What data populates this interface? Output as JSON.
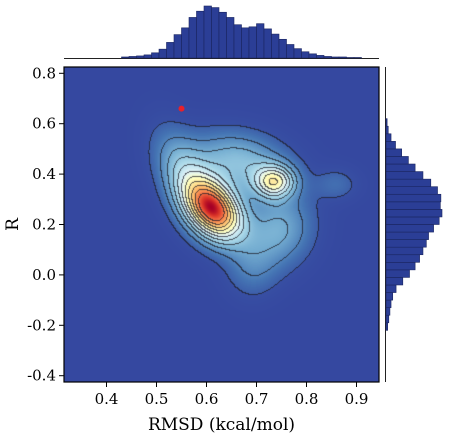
{
  "chart_data": {
    "type": "heatmap",
    "subtype": "joint-kde-with-marginal-histograms",
    "xlabel": "RMSD (kcal/mol)",
    "ylabel": "R",
    "xlim": [
      0.315,
      0.945
    ],
    "ylim": [
      -0.425,
      0.825
    ],
    "x_ticks": [
      0.4,
      0.5,
      0.6,
      0.7,
      0.8,
      0.9
    ],
    "x_tick_labels": [
      "0.4",
      "0.5",
      "0.6",
      "0.7",
      "0.8",
      "0.9"
    ],
    "y_ticks": [
      -0.4,
      -0.2,
      0.0,
      0.2,
      0.4,
      0.6,
      0.8
    ],
    "y_tick_labels": [
      "-0.4",
      "-0.2",
      "0.0",
      "0.2",
      "0.4",
      "0.6",
      "0.8"
    ],
    "colormap": "RdYlBu_r",
    "grid": false,
    "background_color": "#3548a0",
    "density_components": [
      {
        "x": 0.615,
        "y": 0.26,
        "sx": 0.04,
        "sy": 0.085,
        "rho": -0.35,
        "w": 1.0
      },
      {
        "x": 0.735,
        "y": 0.37,
        "sx": 0.028,
        "sy": 0.045,
        "rho": 0.0,
        "w": 0.55
      },
      {
        "x": 0.665,
        "y": 0.45,
        "sx": 0.065,
        "sy": 0.08,
        "rho": -0.2,
        "w": 0.3
      },
      {
        "x": 0.745,
        "y": 0.18,
        "sx": 0.045,
        "sy": 0.1,
        "rho": 0.1,
        "w": 0.25
      },
      {
        "x": 0.56,
        "y": 0.38,
        "sx": 0.04,
        "sy": 0.12,
        "rho": -0.5,
        "w": 0.3
      },
      {
        "x": 0.86,
        "y": 0.36,
        "sx": 0.03,
        "sy": 0.045,
        "rho": 0.0,
        "w": 0.09
      },
      {
        "x": 0.69,
        "y": 0.03,
        "sx": 0.035,
        "sy": 0.08,
        "rho": 0.0,
        "w": 0.12
      }
    ],
    "contour_levels": [
      0.05,
      0.13,
      0.21,
      0.29,
      0.37,
      0.45,
      0.53,
      0.61,
      0.69,
      0.77,
      0.85
    ],
    "highlight_point": {
      "x": 0.55,
      "y": 0.66,
      "color": "#e8202a"
    },
    "marginal_x_hist": {
      "bin_edges": [
        0.43,
        0.445,
        0.46,
        0.475,
        0.49,
        0.505,
        0.52,
        0.535,
        0.55,
        0.565,
        0.58,
        0.595,
        0.61,
        0.625,
        0.64,
        0.655,
        0.67,
        0.685,
        0.7,
        0.715,
        0.73,
        0.745,
        0.76,
        0.775,
        0.79,
        0.805,
        0.82,
        0.835,
        0.85,
        0.865,
        0.88,
        0.895,
        0.91
      ],
      "counts": [
        0.02,
        0.03,
        0.04,
        0.06,
        0.1,
        0.17,
        0.3,
        0.45,
        0.58,
        0.78,
        0.9,
        1.0,
        0.97,
        0.88,
        0.78,
        0.64,
        0.58,
        0.6,
        0.66,
        0.56,
        0.46,
        0.36,
        0.26,
        0.18,
        0.12,
        0.08,
        0.05,
        0.03,
        0.02,
        0.02,
        0.01,
        0.01
      ],
      "color": "#2b3e96"
    },
    "marginal_y_hist": {
      "bin_edges": [
        -0.22,
        -0.19,
        -0.16,
        -0.13,
        -0.1,
        -0.07,
        -0.04,
        -0.01,
        0.02,
        0.05,
        0.08,
        0.11,
        0.14,
        0.17,
        0.2,
        0.23,
        0.26,
        0.29,
        0.32,
        0.35,
        0.38,
        0.41,
        0.44,
        0.47,
        0.5,
        0.53,
        0.56,
        0.59,
        0.62
      ],
      "counts": [
        0.03,
        0.05,
        0.07,
        0.09,
        0.12,
        0.18,
        0.3,
        0.42,
        0.52,
        0.6,
        0.66,
        0.72,
        0.76,
        0.85,
        0.95,
        1.0,
        0.97,
        0.98,
        0.92,
        0.8,
        0.66,
        0.52,
        0.4,
        0.28,
        0.17,
        0.09,
        0.04,
        0.02
      ],
      "color": "#2b3e96"
    }
  }
}
